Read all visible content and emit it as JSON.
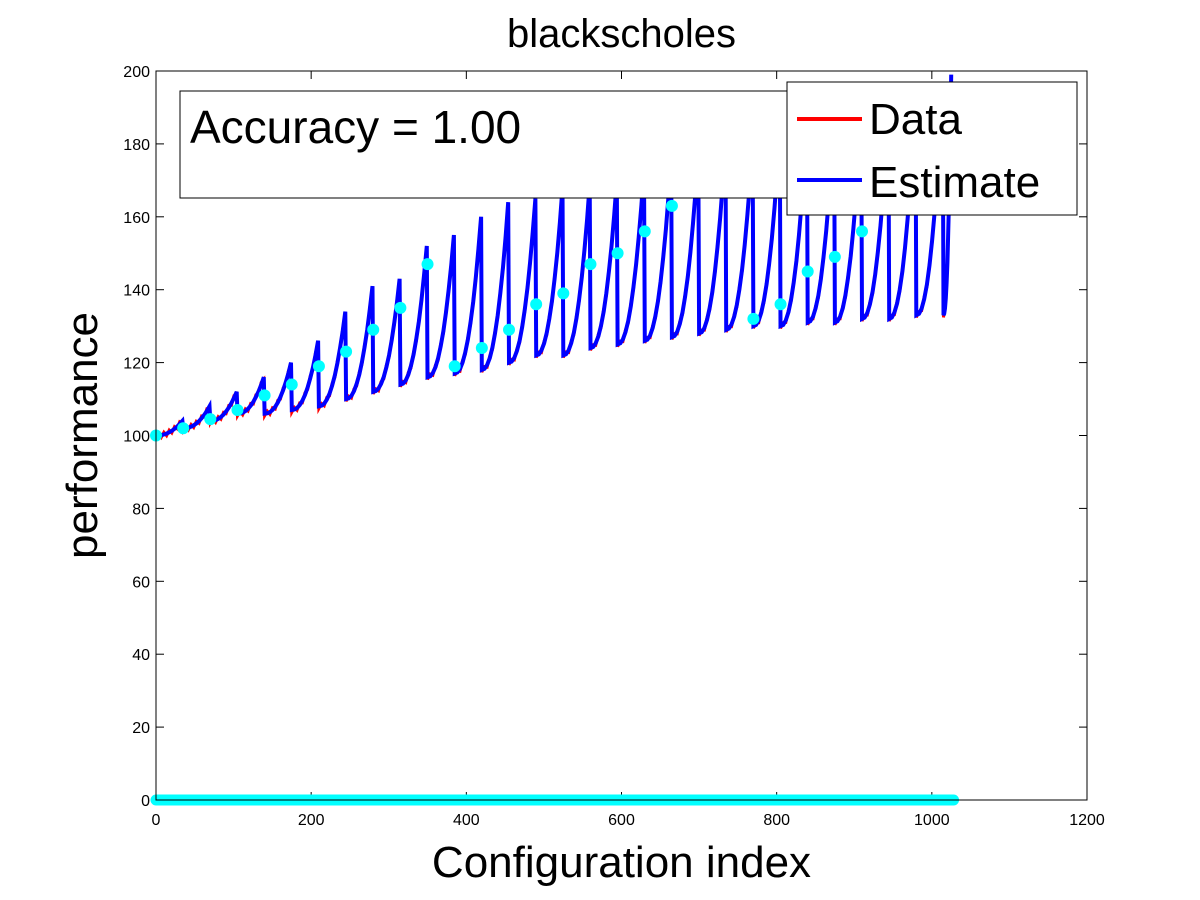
{
  "chart_data": {
    "type": "line",
    "title": "blackscholes",
    "xlabel": "Configuration index",
    "ylabel": "performance",
    "xlim": [
      0,
      1200
    ],
    "ylim": [
      0,
      200
    ],
    "xticks": [
      0,
      200,
      400,
      600,
      800,
      1000,
      1200
    ],
    "yticks": [
      0,
      20,
      40,
      60,
      80,
      100,
      120,
      140,
      160,
      180,
      200
    ],
    "grid": false,
    "legend": {
      "placement": "top-right",
      "entries": [
        "Data",
        "Estimate"
      ]
    },
    "annotation": "Accuracy = 1.00",
    "colors": {
      "data": "#ff0000",
      "estimate": "#0000ff",
      "samples": "#00ffff"
    },
    "sawtooth": {
      "segment_length": 35,
      "segment_count": 30,
      "x_end": 1025,
      "segment_lows": [
        100,
        102,
        104,
        106,
        106,
        107,
        108,
        110,
        112,
        114,
        116,
        117,
        118,
        120,
        122,
        122,
        124,
        125,
        126,
        127,
        128,
        129,
        130,
        130,
        131,
        131,
        132,
        132,
        133,
        133
      ],
      "segment_highs": [
        104,
        108,
        112,
        116,
        120,
        126,
        134,
        141,
        143,
        152,
        155,
        160,
        164,
        165,
        168,
        169,
        170,
        173,
        176,
        178,
        180,
        180,
        183,
        185,
        186,
        187,
        188,
        192,
        196,
        199
      ]
    },
    "series": [
      {
        "name": "Data"
      },
      {
        "name": "Estimate"
      }
    ],
    "sample_points": {
      "x": [
        0,
        35,
        70,
        105,
        140,
        175,
        210,
        245,
        280,
        315,
        350,
        385,
        420,
        455,
        490,
        525,
        560,
        595,
        630,
        665,
        700,
        735,
        770,
        805,
        840,
        875,
        910
      ],
      "y": [
        100,
        102,
        104.5,
        107,
        111,
        114,
        119,
        123,
        129,
        135,
        147,
        119,
        124,
        129,
        136,
        139,
        147,
        150,
        156,
        163,
        169,
        181,
        132,
        136,
        145,
        149,
        156
      ]
    },
    "zero_band": {
      "x_start": 0,
      "x_end": 1028,
      "y": 0
    }
  }
}
